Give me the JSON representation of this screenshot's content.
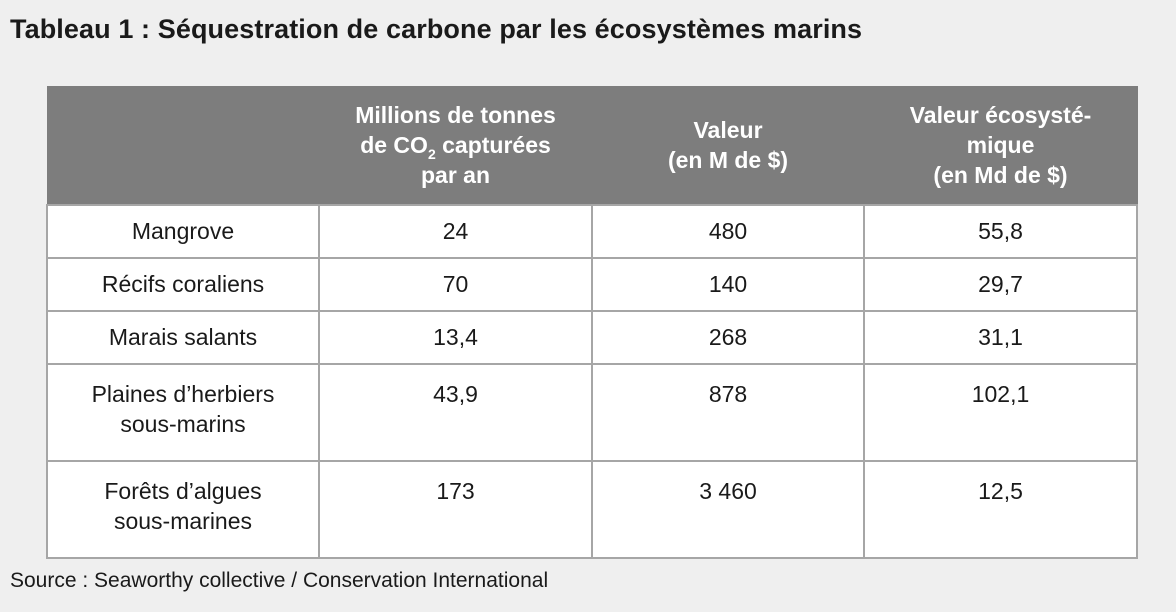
{
  "title": "Tableau 1 : Séquestration de carbone par les écosystèmes marins",
  "table": {
    "headers": [
      {
        "lines": []
      },
      {
        "lines": [
          "Millions de tonnes",
          "de CO",
          "2",
          " capturées",
          "par an"
        ]
      },
      {
        "lines": [
          "Valeur",
          "(en M de $)"
        ]
      },
      {
        "lines": [
          "Valeur écosysté-",
          "mique",
          "(en Md de $)"
        ]
      }
    ],
    "rows": [
      {
        "label": [
          "Mangrove"
        ],
        "co2": "24",
        "valeur": "480",
        "valeur_eco": "55,8"
      },
      {
        "label": [
          "Récifs coraliens"
        ],
        "co2": "70",
        "valeur": "140",
        "valeur_eco": "29,7"
      },
      {
        "label": [
          "Marais salants"
        ],
        "co2": "13,4",
        "valeur": "268",
        "valeur_eco": "31,1"
      },
      {
        "label": [
          "Plaines d’herbiers",
          "sous-marins"
        ],
        "co2": "43,9",
        "valeur": "878",
        "valeur_eco": "102,1"
      },
      {
        "label": [
          "Forêts d’algues",
          "sous-marines"
        ],
        "co2": "173",
        "valeur": "3 460",
        "valeur_eco": "12,5"
      }
    ]
  },
  "source": "Source : Seaworthy collective / Conservation International"
}
